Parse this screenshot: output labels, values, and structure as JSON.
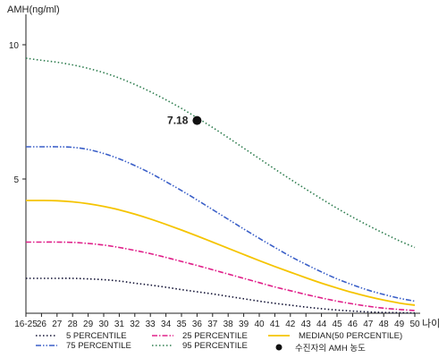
{
  "chart_data": {
    "type": "line",
    "ylabel": "AMH(ng/ml)",
    "xlabel": "나이",
    "ylim": [
      0,
      11
    ],
    "yticks": [
      5,
      10
    ],
    "categories": [
      "16-25",
      "26",
      "27",
      "28",
      "29",
      "30",
      "31",
      "32",
      "33",
      "34",
      "35",
      "36",
      "37",
      "38",
      "39",
      "40",
      "41",
      "42",
      "43",
      "44",
      "45",
      "46",
      "47",
      "48",
      "49",
      "50"
    ],
    "series": [
      {
        "name": "5 PERCENTILE",
        "color": "#111133",
        "style": "dotted",
        "values": [
          1.3,
          1.3,
          1.3,
          1.3,
          1.28,
          1.25,
          1.2,
          1.12,
          1.05,
          0.97,
          0.88,
          0.8,
          0.72,
          0.63,
          0.54,
          0.45,
          0.37,
          0.3,
          0.23,
          0.17,
          0.12,
          0.08,
          0.05,
          0.03,
          0.02,
          0.01
        ]
      },
      {
        "name": "25 PERCENTILE",
        "color": "#e0208a",
        "style": "dashdot",
        "values": [
          2.65,
          2.65,
          2.65,
          2.64,
          2.6,
          2.54,
          2.45,
          2.34,
          2.22,
          2.08,
          1.93,
          1.78,
          1.62,
          1.46,
          1.3,
          1.14,
          0.98,
          0.84,
          0.7,
          0.57,
          0.45,
          0.35,
          0.26,
          0.19,
          0.14,
          0.1
        ]
      },
      {
        "name": "MEDIAN(50 PERCENTILE)",
        "color": "#f5c400",
        "style": "solid",
        "values": [
          4.2,
          4.2,
          4.19,
          4.15,
          4.08,
          3.98,
          3.85,
          3.69,
          3.51,
          3.31,
          3.1,
          2.88,
          2.65,
          2.42,
          2.19,
          1.96,
          1.74,
          1.53,
          1.32,
          1.12,
          0.94,
          0.77,
          0.62,
          0.49,
          0.38,
          0.3
        ]
      },
      {
        "name": "75 PERCENTILE",
        "color": "#3a5fc8",
        "style": "dashdotdot",
        "values": [
          6.2,
          6.2,
          6.2,
          6.18,
          6.1,
          5.95,
          5.75,
          5.5,
          5.22,
          4.9,
          4.57,
          4.22,
          3.86,
          3.5,
          3.14,
          2.79,
          2.45,
          2.12,
          1.82,
          1.54,
          1.28,
          1.06,
          0.86,
          0.7,
          0.56,
          0.45
        ]
      },
      {
        "name": "95 PERCENTILE",
        "color": "#2e7d4f",
        "style": "dotted",
        "values": [
          9.5,
          9.42,
          9.35,
          9.25,
          9.12,
          8.96,
          8.76,
          8.52,
          8.25,
          7.95,
          7.63,
          7.28,
          6.92,
          6.54,
          6.15,
          5.76,
          5.37,
          4.99,
          4.62,
          4.26,
          3.91,
          3.58,
          3.27,
          2.98,
          2.7,
          2.45
        ]
      }
    ],
    "marker": {
      "legend_label": "수진자의 AMH 농도",
      "x": "36",
      "value": 7.18,
      "label": "7.18",
      "color": "#111111"
    },
    "legend_position": "bottom"
  }
}
